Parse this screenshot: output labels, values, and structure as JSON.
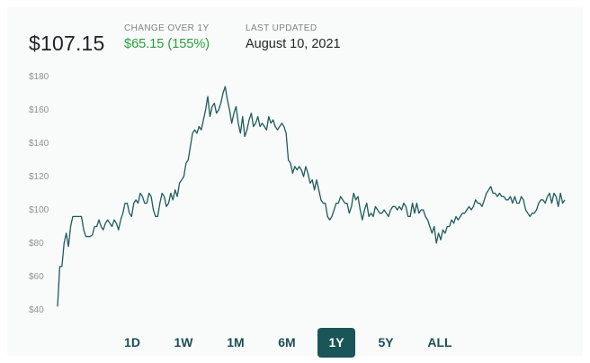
{
  "header": {
    "price": "$107.15",
    "change_label": "CHANGE OVER 1Y",
    "change_value": "$65.15 (155%)",
    "updated_label": "LAST UPDATED",
    "updated_value": "August 10, 2021"
  },
  "colors": {
    "line": "#1f5b5c",
    "positive": "#26a03b",
    "active_button": "#1a5558"
  },
  "ranges": [
    "1D",
    "1W",
    "1M",
    "6M",
    "1Y",
    "5Y",
    "ALL"
  ],
  "selected_range": "1Y",
  "chart_data": {
    "type": "line",
    "title": "",
    "xlabel": "",
    "ylabel": "",
    "ylim": [
      40,
      180
    ],
    "yticks": [
      180,
      160,
      140,
      120,
      100,
      80,
      60,
      40
    ],
    "ytick_labels": [
      "$180",
      "$160",
      "$140",
      "$120",
      "$100",
      "$80",
      "$60",
      "$40"
    ],
    "grid": false,
    "legend": false,
    "series": [
      {
        "values": [
          42,
          66,
          66,
          80,
          86,
          78,
          90,
          96,
          96,
          96,
          96,
          96,
          88,
          84,
          84,
          84,
          85,
          90,
          90,
          94,
          90,
          88,
          92,
          94,
          92,
          90,
          94,
          92,
          88,
          94,
          98,
          104,
          104,
          98,
          96,
          104,
          106,
          104,
          110,
          108,
          104,
          104,
          110,
          108,
          100,
          96,
          96,
          104,
          110,
          108,
          102,
          104,
          110,
          106,
          112,
          108,
          116,
          118,
          120,
          128,
          130,
          138,
          146,
          148,
          146,
          150,
          148,
          154,
          160,
          168,
          156,
          162,
          164,
          158,
          160,
          164,
          170,
          174,
          166,
          160,
          152,
          158,
          162,
          152,
          146,
          156,
          144,
          148,
          154,
          158,
          150,
          152,
          156,
          150,
          152,
          150,
          148,
          156,
          152,
          154,
          150,
          148,
          150,
          152,
          150,
          146,
          130,
          128,
          122,
          126,
          124,
          126,
          124,
          120,
          126,
          122,
          116,
          118,
          112,
          118,
          112,
          106,
          104,
          104,
          96,
          94,
          96,
          100,
          104,
          104,
          108,
          106,
          104,
          104,
          98,
          102,
          110,
          106,
          108,
          100,
          94,
          100,
          104,
          96,
          98,
          96,
          102,
          100,
          98,
          98,
          100,
          98,
          96,
          100,
          102,
          102,
          100,
          102,
          100,
          104,
          102,
          96,
          96,
          104,
          98,
          104,
          98,
          100,
          100,
          96,
          94,
          90,
          86,
          90,
          80,
          86,
          82,
          88,
          86,
          90,
          90,
          94,
          92,
          96,
          94,
          96,
          98,
          98,
          100,
          102,
          100,
          102,
          106,
          104,
          104,
          102,
          106,
          110,
          112,
          114,
          110,
          110,
          108,
          110,
          108,
          108,
          106,
          106,
          108,
          104,
          108,
          104,
          104,
          108,
          106,
          100,
          98,
          96,
          98,
          98,
          100,
          104,
          106,
          106,
          104,
          108,
          110,
          104,
          110,
          108,
          102,
          110,
          104,
          106
        ]
      }
    ]
  }
}
